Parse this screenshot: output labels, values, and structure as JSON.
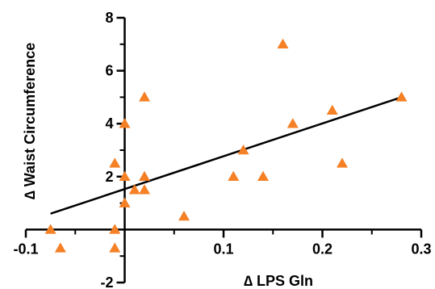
{
  "chart_data": {
    "type": "scatter",
    "title": "",
    "xlabel": "∆  LPS Gln",
    "ylabel": "∆  Waist Circumference",
    "xlim": [
      -0.1,
      0.3
    ],
    "ylim": [
      -2,
      8
    ],
    "x_ticks": [
      -0.1,
      0.1,
      0.2,
      0.3
    ],
    "x_tick_labels": [
      "-0.1",
      "0.1",
      "0.2",
      "0.3"
    ],
    "y_ticks": [
      -2,
      2,
      4,
      6,
      8
    ],
    "y_tick_labels": [
      "-2",
      "2",
      "4",
      "6",
      "8"
    ],
    "grid": false,
    "marker": "triangle",
    "marker_color": "#f58025",
    "line_color": "#000000",
    "series": [
      {
        "points": [
          {
            "x": -0.075,
            "y": 0.0
          },
          {
            "x": -0.065,
            "y": -0.7
          },
          {
            "x": -0.01,
            "y": 2.5
          },
          {
            "x": -0.01,
            "y": 0.0
          },
          {
            "x": -0.01,
            "y": -0.7
          },
          {
            "x": 0.0,
            "y": 4.0
          },
          {
            "x": 0.0,
            "y": 2.0
          },
          {
            "x": 0.0,
            "y": 1.0
          },
          {
            "x": 0.01,
            "y": 1.5
          },
          {
            "x": 0.02,
            "y": 5.0
          },
          {
            "x": 0.02,
            "y": 2.0
          },
          {
            "x": 0.02,
            "y": 1.5
          },
          {
            "x": 0.06,
            "y": 0.5
          },
          {
            "x": 0.11,
            "y": 2.0
          },
          {
            "x": 0.12,
            "y": 3.0
          },
          {
            "x": 0.14,
            "y": 2.0
          },
          {
            "x": 0.16,
            "y": 7.0
          },
          {
            "x": 0.17,
            "y": 4.0
          },
          {
            "x": 0.21,
            "y": 4.5
          },
          {
            "x": 0.22,
            "y": 2.5
          },
          {
            "x": 0.28,
            "y": 5.0
          }
        ]
      }
    ],
    "fit_line": {
      "x": [
        -0.075,
        0.28
      ],
      "y": [
        0.6,
        5.0
      ]
    }
  }
}
